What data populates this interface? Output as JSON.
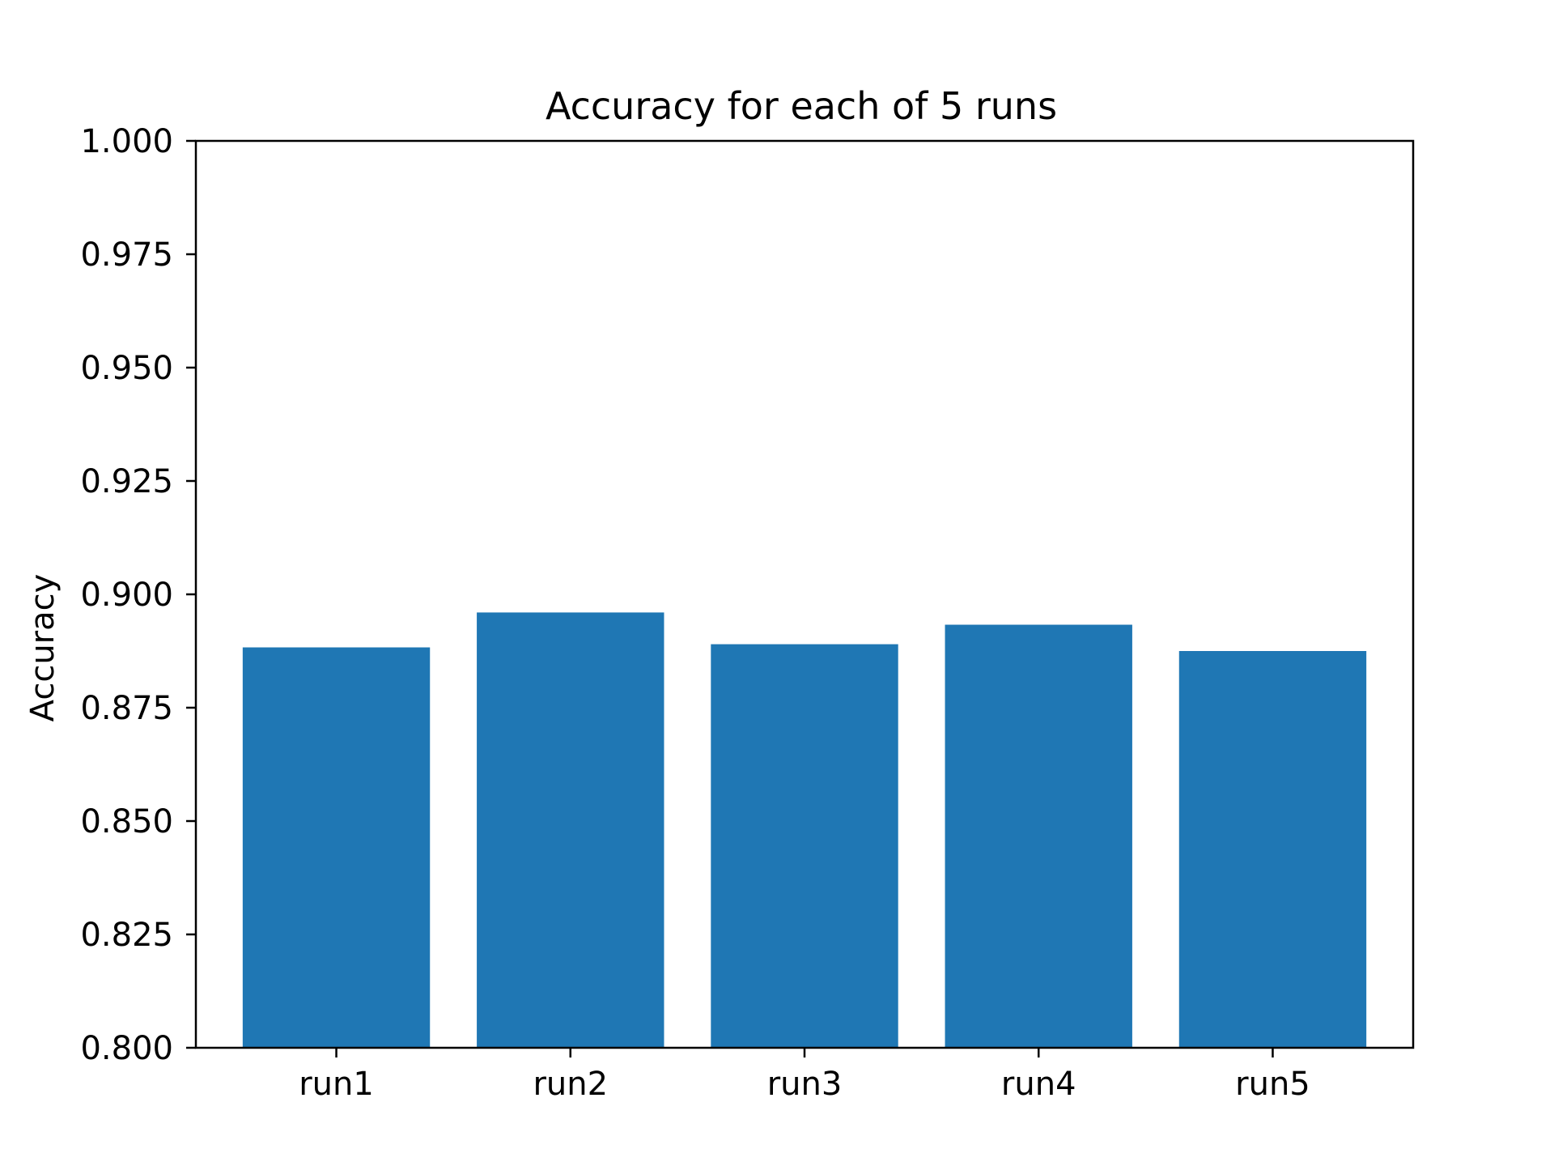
{
  "chart_data": {
    "type": "bar",
    "title": "Accuracy for each of 5 runs",
    "xlabel": "",
    "ylabel": "Accuracy",
    "categories": [
      "run1",
      "run2",
      "run3",
      "run4",
      "run5"
    ],
    "values": [
      0.8883,
      0.896,
      0.889,
      0.8933,
      0.8875
    ],
    "ylim": [
      0.8,
      1.0
    ],
    "yticks": [
      "0.800",
      "0.825",
      "0.850",
      "0.875",
      "0.900",
      "0.925",
      "0.950",
      "0.975",
      "1.000"
    ],
    "bar_color": "#1f77b4",
    "grid": false,
    "legend": "none"
  }
}
